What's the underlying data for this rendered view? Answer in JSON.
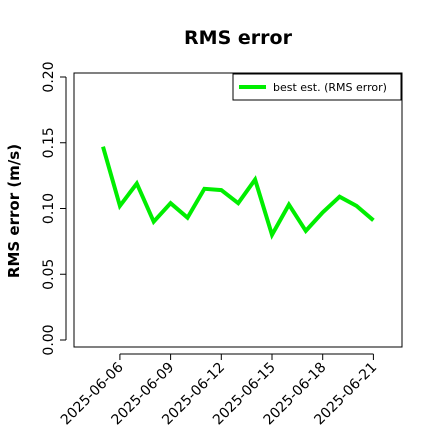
{
  "chart_data": {
    "type": "line",
    "title": "RMS error",
    "xlabel": "",
    "ylabel": "RMS error (m/s)",
    "x": [
      "2025-06-05",
      "2025-06-06",
      "2025-06-07",
      "2025-06-08",
      "2025-06-09",
      "2025-06-10",
      "2025-06-11",
      "2025-06-12",
      "2025-06-13",
      "2025-06-14",
      "2025-06-15",
      "2025-06-16",
      "2025-06-17",
      "2025-06-18",
      "2025-06-19",
      "2025-06-20",
      "2025-06-21"
    ],
    "series": [
      {
        "name": "best est. (RMS error)",
        "color": "#00ee00",
        "values": [
          0.147,
          0.102,
          0.119,
          0.09,
          0.104,
          0.093,
          0.115,
          0.114,
          0.104,
          0.122,
          0.08,
          0.103,
          0.083,
          0.097,
          0.109,
          0.102,
          0.091
        ]
      }
    ],
    "ylim": [
      0.0,
      0.21
    ],
    "yticks": [
      "0.00",
      "0.05",
      "0.10",
      "0.15",
      "0.20"
    ],
    "xticks": [
      {
        "label": "2025-06-06",
        "color": "#000000"
      },
      {
        "label": "2025-06-09",
        "color": "#000000"
      },
      {
        "label": "2025-06-12",
        "color": "#228b22"
      },
      {
        "label": "2025-06-15",
        "color": "#000000"
      },
      {
        "label": "2025-06-18",
        "color": "#000000"
      },
      {
        "label": "2025-06-21",
        "color": "#000000"
      }
    ],
    "legend_position": "top-right",
    "grid": false
  }
}
